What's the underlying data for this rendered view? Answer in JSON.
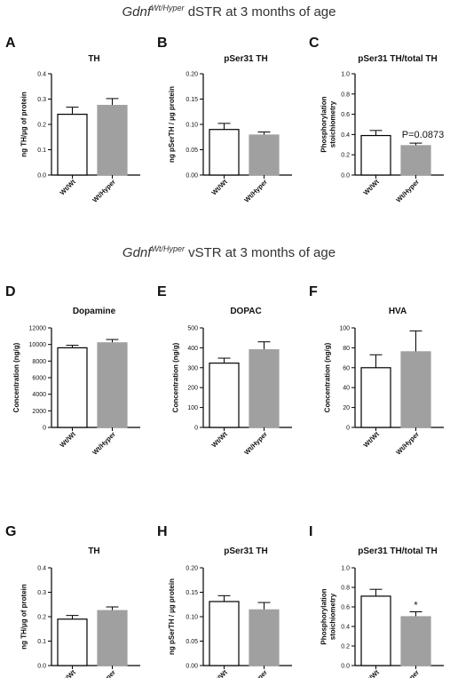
{
  "sections": [
    {
      "gene": "Gdnf",
      "superscript": "Wt/Hyper",
      "rest": " dSTR at 3 months of age"
    },
    {
      "gene": "Gdnf",
      "superscript": "Wt/Hyper",
      "rest": " vSTR at 3 months of age"
    }
  ],
  "colors": {
    "wt_bar": "#ffffff",
    "hyper_bar": "#a0a0a0",
    "axis": "#000000"
  },
  "chart_data": [
    {
      "letter": "A",
      "type": "bar",
      "title": "TH",
      "ylabel": "ng TH/µg of protein",
      "categories": [
        "Wt/Wt",
        "Wt/Hyper"
      ],
      "values": [
        0.24,
        0.275
      ],
      "errors": [
        0.028,
        0.027
      ],
      "ylim": [
        0,
        0.4
      ],
      "yticks": [
        "0.0",
        "0.1",
        "0.2",
        "0.3",
        "0.4"
      ],
      "annotation": ""
    },
    {
      "letter": "B",
      "type": "bar",
      "title": "pSer31 TH",
      "ylabel": "ng pSerTH / µg protein",
      "categories": [
        "Wt/Wt",
        "Wt/Hyper"
      ],
      "values": [
        0.09,
        0.079
      ],
      "errors": [
        0.012,
        0.006
      ],
      "ylim": [
        0,
        0.2
      ],
      "yticks": [
        "0.00",
        "0.05",
        "0.10",
        "0.15",
        "0.20"
      ],
      "annotation": ""
    },
    {
      "letter": "C",
      "type": "bar",
      "title": "pSer31 TH/total TH",
      "ylabel": "Phosphorylation\nstoichiometry",
      "categories": [
        "Wt/Wt",
        "Wt/Hyper"
      ],
      "values": [
        0.39,
        0.29
      ],
      "errors": [
        0.05,
        0.025
      ],
      "ylim": [
        0,
        1.0
      ],
      "yticks": [
        "0.0",
        "0.2",
        "0.4",
        "0.6",
        "0.8",
        "1.0"
      ],
      "annotation": "P=0.0873"
    },
    {
      "letter": "D",
      "type": "bar",
      "title": "Dopamine",
      "ylabel": "Concentration (ng/g)",
      "categories": [
        "Wt/Wt",
        "Wt/Hyper"
      ],
      "values": [
        9600,
        10200
      ],
      "errors": [
        300,
        400
      ],
      "ylim": [
        0,
        12000
      ],
      "yticks": [
        "0",
        "2000",
        "4000",
        "6000",
        "8000",
        "10000",
        "12000"
      ],
      "annotation": ""
    },
    {
      "letter": "E",
      "type": "bar",
      "title": "DOPAC",
      "ylabel": "Concentration (ng/g)",
      "categories": [
        "Wt/Wt",
        "Wt/Hyper"
      ],
      "values": [
        323,
        390
      ],
      "errors": [
        25,
        40
      ],
      "ylim": [
        0,
        500
      ],
      "yticks": [
        "0",
        "100",
        "200",
        "300",
        "400",
        "500"
      ],
      "annotation": ""
    },
    {
      "letter": "F",
      "type": "bar",
      "title": "HVA",
      "ylabel": "Concentration (ng/g)",
      "categories": [
        "Wt/Wt",
        "Wt/Hyper"
      ],
      "values": [
        60,
        76
      ],
      "errors": [
        13,
        21
      ],
      "ylim": [
        0,
        100
      ],
      "yticks": [
        "0",
        "20",
        "40",
        "60",
        "80",
        "100"
      ],
      "annotation": ""
    },
    {
      "letter": "G",
      "type": "bar",
      "title": "TH",
      "ylabel": "ng TH/µg of protein",
      "categories": [
        "Wt/Wt",
        "Wt/Hyper"
      ],
      "values": [
        0.19,
        0.225
      ],
      "errors": [
        0.015,
        0.015
      ],
      "ylim": [
        0,
        0.4
      ],
      "yticks": [
        "0.0",
        "0.1",
        "0.2",
        "0.3",
        "0.4"
      ],
      "annotation": ""
    },
    {
      "letter": "H",
      "type": "bar",
      "title": "pSer31 TH",
      "ylabel": "ng pSerTH / µg protein",
      "categories": [
        "Wt/Wt",
        "Wt/Hyper"
      ],
      "values": [
        0.131,
        0.114
      ],
      "errors": [
        0.012,
        0.015
      ],
      "ylim": [
        0,
        0.2
      ],
      "yticks": [
        "0.00",
        "0.05",
        "0.10",
        "0.15",
        "0.20"
      ],
      "annotation": ""
    },
    {
      "letter": "I",
      "type": "bar",
      "title": "pSer31 TH/total TH",
      "ylabel": "Phosphorylation\nstoichiometry",
      "categories": [
        "Wt/Wt",
        "Wt/Hyper"
      ],
      "values": [
        0.71,
        0.5
      ],
      "errors": [
        0.07,
        0.05
      ],
      "ylim": [
        0,
        1.0
      ],
      "yticks": [
        "0.0",
        "0.2",
        "0.4",
        "0.6",
        "0.8",
        "1.0"
      ],
      "annotation": "*"
    }
  ]
}
